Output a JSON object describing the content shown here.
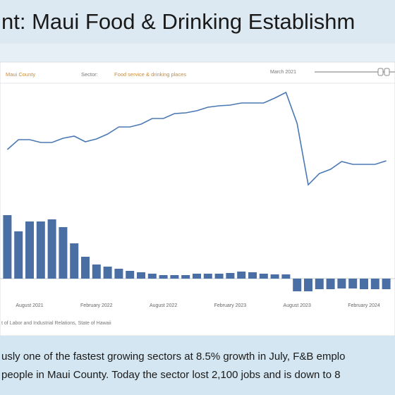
{
  "header": {
    "title": "nt:  Maui Food & Drinking Establishm"
  },
  "filters": {
    "county": "Maui County",
    "sector_label": "Sector:",
    "sector": "Food service & drinking places",
    "date": "March 2021"
  },
  "chart_data": {
    "type": "combo",
    "categories": [
      null,
      null,
      "August 2021",
      null,
      null,
      null,
      null,
      null,
      "February 2022",
      null,
      null,
      null,
      null,
      null,
      "August 2022",
      null,
      null,
      null,
      null,
      null,
      "February 2023",
      null,
      null,
      null,
      null,
      null,
      "August 2023",
      null,
      null,
      null,
      null,
      null,
      "February 2024",
      null,
      null
    ],
    "line": {
      "color": "#4a78b4",
      "values": [
        68,
        82,
        82,
        78,
        78,
        84,
        87,
        79,
        83,
        90,
        100,
        100,
        104,
        112,
        112,
        119,
        120,
        123,
        128,
        130,
        131,
        134,
        134,
        134,
        141,
        149,
        105,
        18,
        34,
        40,
        51,
        47,
        47,
        47,
        52
      ],
      "ylim": [
        0,
        160
      ]
    },
    "bars": {
      "color": "#4a6fa5",
      "values": [
        90,
        67,
        81,
        81,
        84,
        73,
        50,
        31,
        20,
        17,
        14,
        11,
        9,
        7,
        5,
        5,
        5,
        7,
        7,
        7,
        8,
        10,
        9,
        7,
        6,
        6,
        -18,
        -18,
        -15,
        -15,
        -14,
        -14,
        -15,
        -15,
        -15
      ],
      "ylim": [
        -40,
        100
      ]
    },
    "source": "t of Labor and Industrial Relations, State of Hawaii"
  },
  "footer": {
    "lines": [
      "usly one of the fastest growing sectors at 8.5% growth in July, F&B emplo",
      "people in Maui County. Today the sector lost 2,100 jobs and is down to 8"
    ]
  }
}
